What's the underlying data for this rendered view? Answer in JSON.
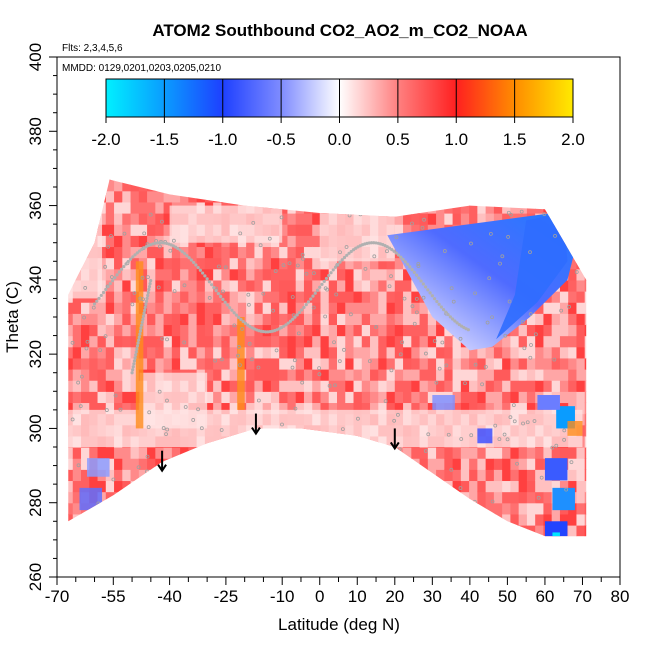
{
  "chart_data": {
    "type": "heatmap",
    "title": "ATOM2 Southbound CO2_AO2_m_CO2_NOAA",
    "notes": [
      "Flts: 2,3,4,5,6",
      "MMDD: 0129,0201,0203,0205,0210"
    ],
    "xlabel": "Latitude (deg N)",
    "ylabel": "Theta (C)",
    "xlim": [
      -70,
      80
    ],
    "ylim": [
      260,
      400
    ],
    "x_ticks": [
      -70,
      -55,
      -40,
      -25,
      -10,
      0,
      10,
      20,
      30,
      40,
      50,
      60,
      70,
      80
    ],
    "y_ticks": [
      260,
      280,
      300,
      320,
      340,
      360,
      380,
      400
    ],
    "colorbar": {
      "min": -2.0,
      "max": 2.0,
      "ticks": [
        "-2.0",
        "-1.5",
        "-1.0",
        "-0.5",
        "0.0",
        "0.5",
        "1.0",
        "1.5",
        "2.0"
      ],
      "colors": [
        "#00ffff",
        "#1e90ff",
        "#0000ff",
        "#ffffff",
        "#ff0000",
        "#ff8c00",
        "#ffff00"
      ]
    },
    "arrows_latitude": [
      -42,
      -17,
      20
    ],
    "field_range": {
      "lat": [
        -67,
        71
      ],
      "theta_bottom_approx": [
        [
          -67,
          275
        ],
        [
          -55,
          282
        ],
        [
          -42,
          291
        ],
        [
          -30,
          296
        ],
        [
          -17,
          300
        ],
        [
          -5,
          300
        ],
        [
          10,
          298
        ],
        [
          20,
          295
        ],
        [
          30,
          288
        ],
        [
          40,
          281
        ],
        [
          50,
          275
        ],
        [
          60,
          271
        ],
        [
          71,
          271
        ]
      ],
      "theta_top_approx": [
        [
          -67,
          336
        ],
        [
          -60,
          350
        ],
        [
          -56,
          367
        ],
        [
          -40,
          363
        ],
        [
          -20,
          360
        ],
        [
          0,
          358
        ],
        [
          20,
          357
        ],
        [
          40,
          360
        ],
        [
          60,
          359
        ],
        [
          71,
          340
        ]
      ]
    }
  }
}
